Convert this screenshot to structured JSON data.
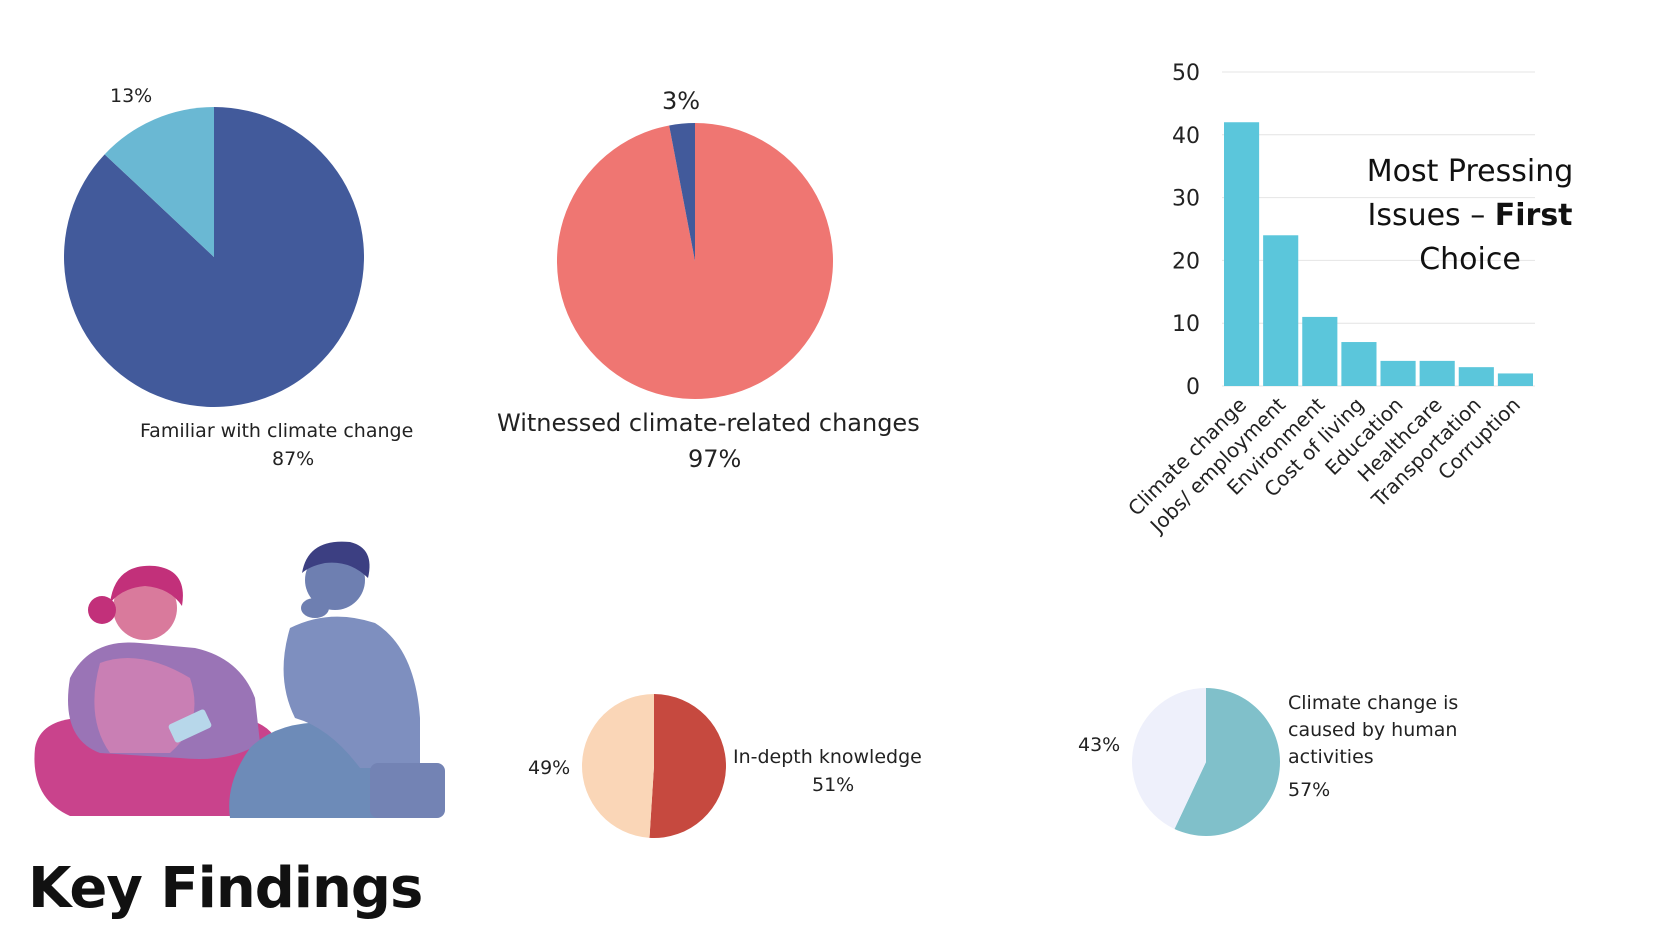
{
  "footer_title": "Key Findings",
  "colors": {
    "navy": "#425a9b",
    "lightblue": "#6ab8d3",
    "coral": "#ef7672",
    "bar": "#5bc6db",
    "darkred": "#c6493f",
    "peach": "#fad6b7",
    "teal": "#80c0ca",
    "pale": "#eef0fb"
  },
  "chart_data": [
    {
      "type": "pie",
      "slices": [
        {
          "label": "Familiar with climate change",
          "value": 87,
          "display": "87%"
        },
        {
          "label": "",
          "value": 13,
          "display": "13%"
        }
      ]
    },
    {
      "type": "pie",
      "slices": [
        {
          "label": "Witnessed climate-related changes",
          "value": 97,
          "display": "97%"
        },
        {
          "label": "",
          "value": 3,
          "display": "3%"
        }
      ]
    },
    {
      "type": "bar",
      "title_line1": "Most Pressing",
      "title_line2_pre": "Issues – ",
      "title_line2_bold": "First",
      "title_line3": "Choice",
      "categories": [
        "Climate change",
        "Jobs/ employment",
        "Environment",
        "Cost of living",
        "Education",
        "Healthcare",
        "Transportation",
        "Corruption"
      ],
      "values": [
        42,
        24,
        11,
        7,
        4,
        4,
        3,
        2
      ],
      "ylim": [
        0,
        50
      ],
      "yticks": [
        0,
        10,
        20,
        30,
        40,
        50
      ],
      "grid": true
    },
    {
      "type": "pie",
      "slices": [
        {
          "label": "In-depth knowledge",
          "value": 51,
          "display": "51%"
        },
        {
          "label": "",
          "value": 49,
          "display": "49%"
        }
      ]
    },
    {
      "type": "pie",
      "slices": [
        {
          "label": "Climate change is caused by human activities",
          "value": 57,
          "display": "57%"
        },
        {
          "label": "",
          "value": 43,
          "display": "43%"
        }
      ]
    }
  ]
}
